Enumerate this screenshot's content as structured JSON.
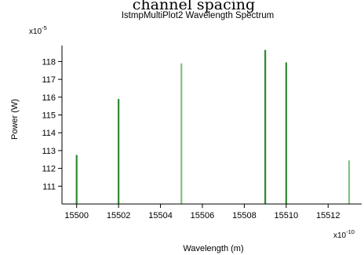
{
  "chart_data": {
    "type": "bar",
    "caption_top": "channel spacing",
    "title": "IstmpMultiPlot2 Wavelength Spectrum",
    "xlabel": "Wavelength (m)",
    "ylabel": "Power (W)",
    "x_multiplier": {
      "base": "x10",
      "exponent": "-10"
    },
    "y_multiplier": {
      "base": "x10",
      "exponent": "-5"
    },
    "xlim": [
      15499.3,
      15513.6
    ],
    "ylim": [
      110,
      118.9
    ],
    "x_ticks": [
      15500,
      15502,
      15504,
      15506,
      15508,
      15510,
      15512
    ],
    "y_ticks": [
      111,
      112,
      113,
      114,
      115,
      116,
      117,
      118
    ],
    "grid": false,
    "series": [
      {
        "x": [
          15500,
          15502,
          15505,
          15509,
          15510,
          15513
        ],
        "values": [
          112.75,
          115.9,
          117.9,
          118.65,
          117.95,
          112.45
        ],
        "colors": [
          "#2f8a2f",
          "#2f8a2f",
          "#7fc27f",
          "#2f8a2f",
          "#2f8a2f",
          "#7fc27f"
        ]
      }
    ]
  }
}
